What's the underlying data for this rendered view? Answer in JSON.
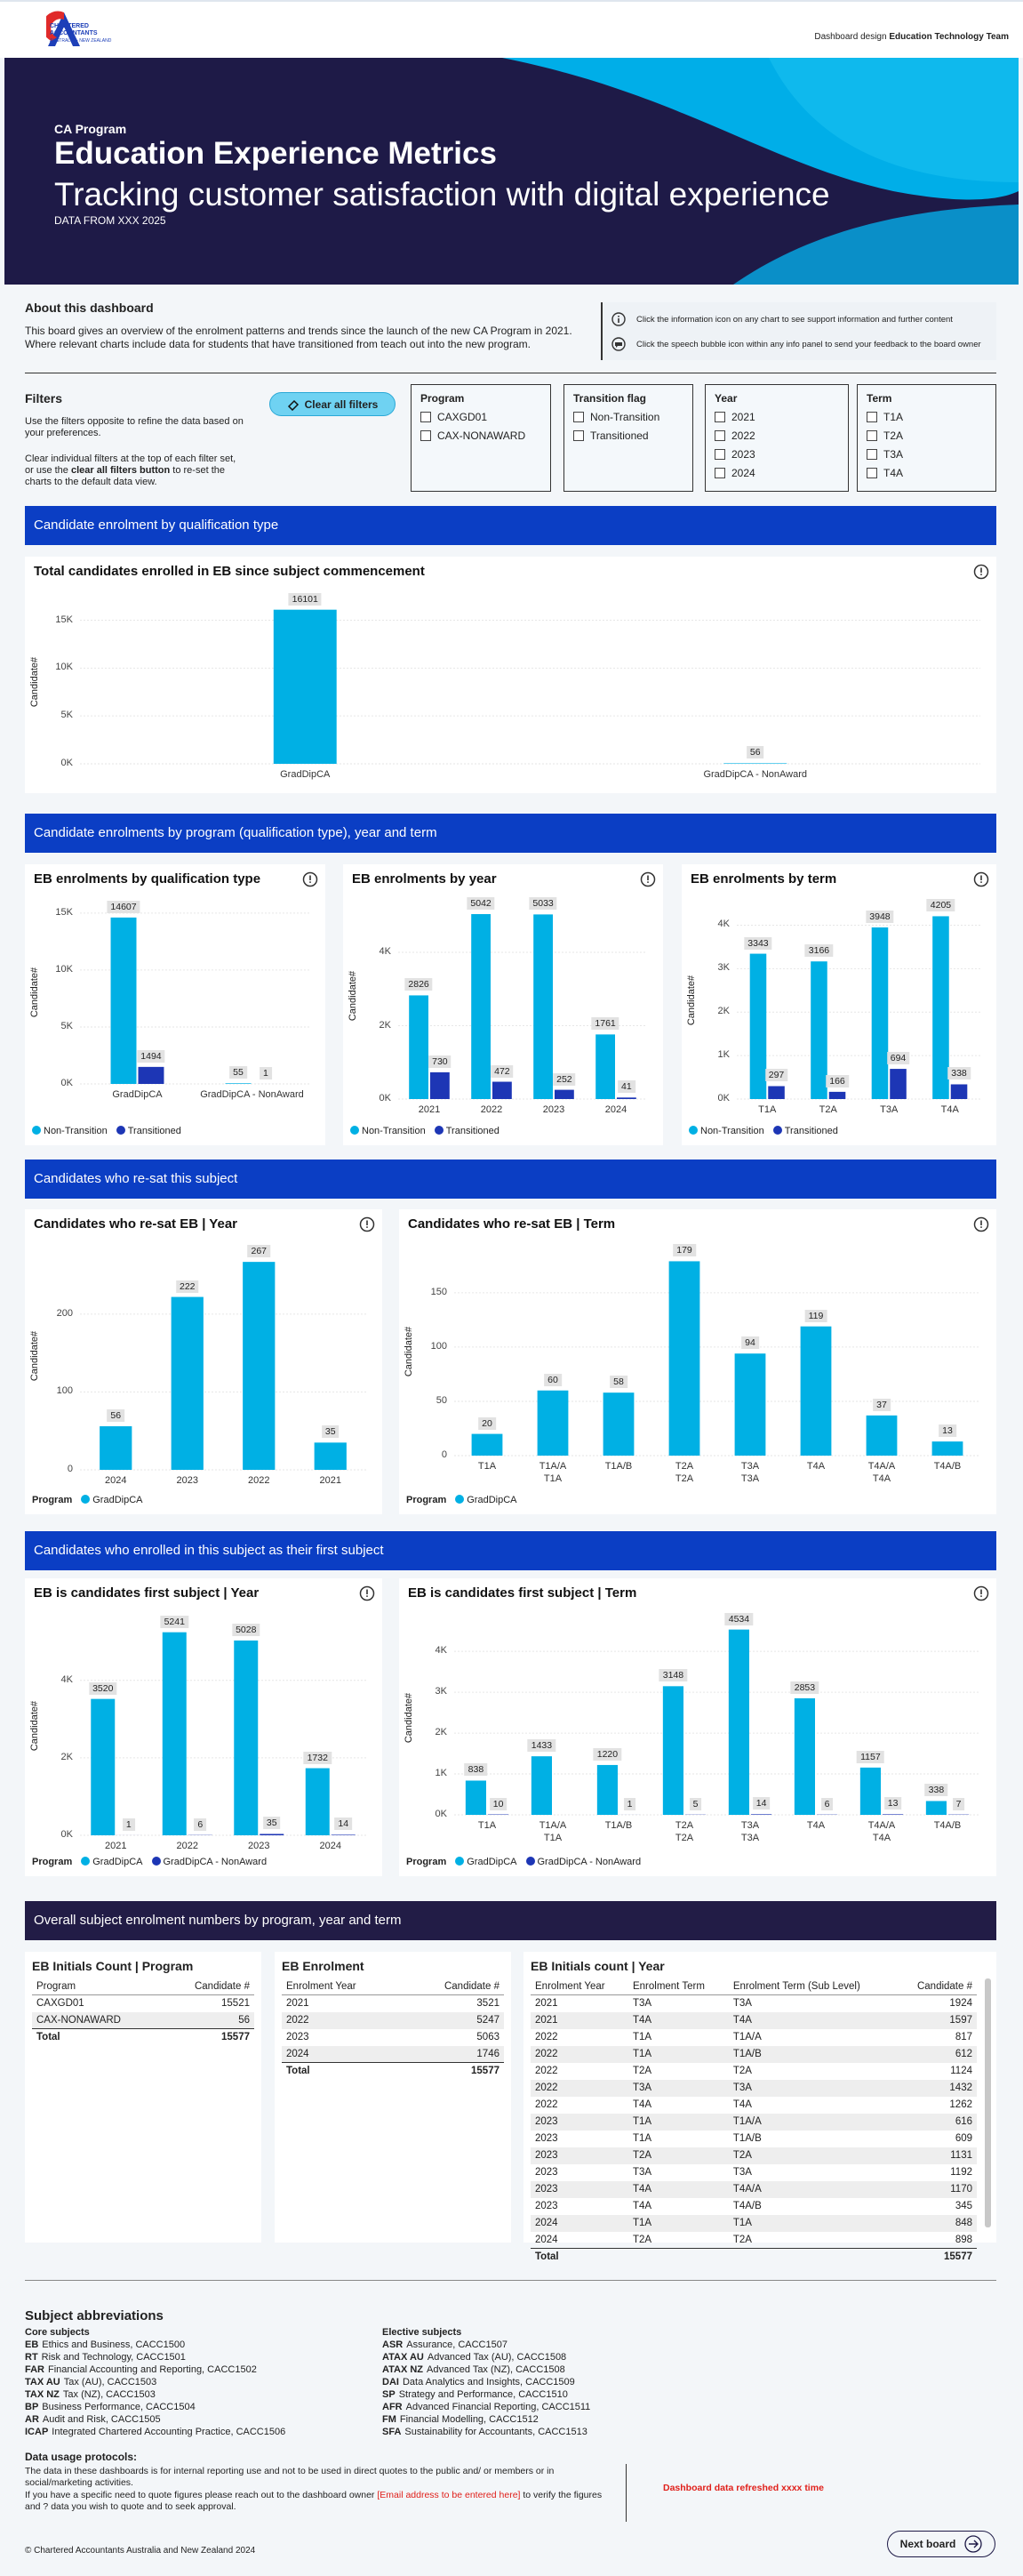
{
  "header": {
    "logo_lines": [
      "CHARTERED",
      "ACCOUNTANTS",
      "AUSTRALIA + NEW ZEALAND"
    ],
    "credit_prefix": "Dashboard design",
    "credit_team": "Education Technology Team"
  },
  "banner": {
    "kicker": "CA Program",
    "title": "Education Experience Metrics",
    "subtitle": "Tracking customer satisfaction with digital experience",
    "note": "DATA FROM XXX 2025"
  },
  "about": {
    "title": "About this dashboard",
    "text": "This board gives an overview of the enrolment patterns and trends since the launch of the new CA Program in 2021. Where relevant charts include data for students that have transitioned from teach out into the new program.",
    "help": [
      "Click the information icon on any chart to see support information and further content",
      "Click the speech bubble icon within any info panel to send your feedback to the board owner"
    ]
  },
  "filters": {
    "title": "Filters",
    "instructions_1": "Use the filters opposite to refine the data based on your preferences.",
    "instructions_2": [
      "Clear individual filters at the top of each filter set, or use the ",
      "clear all filters button",
      " to re-set the charts to the default data view."
    ],
    "clear_button": "Clear all filters",
    "groups": [
      {
        "title": "Program",
        "options": [
          "CAXGD01",
          "CAX-NONAWARD"
        ]
      },
      {
        "title": "Transition flag",
        "options": [
          "Non-Transition",
          "Transitioned"
        ]
      },
      {
        "title": "Year",
        "options": [
          "2021",
          "2022",
          "2023",
          "2024"
        ]
      },
      {
        "title": "Term",
        "options": [
          "T1A",
          "T2A",
          "T3A",
          "T4A"
        ]
      }
    ]
  },
  "sections": [
    "Candidate enrolment by qualification type",
    "Candidate enrolments by program (qualification type), year and term",
    "Candidates who re-sat this subject",
    "Candidates who enrolled in this subject as their first subject",
    "Overall subject enrolment numbers by program, year and term"
  ],
  "chart_data": [
    {
      "type": "bar",
      "title": "Total candidates enrolled in EB since subject commencement",
      "y_label": "Candidate#",
      "categories": [
        "GradDipCA",
        "GradDipCA - NonAward"
      ],
      "values": [
        16101,
        56
      ],
      "color": "#00b0e4",
      "ylim": [
        0,
        17000
      ],
      "yticks": [
        {
          "value": 0,
          "label": "0K"
        },
        {
          "value": 5000,
          "label": "5K"
        },
        {
          "value": 10000,
          "label": "10K"
        },
        {
          "value": 15000,
          "label": "15K"
        }
      ],
      "grid": true
    },
    {
      "type": "bar",
      "title": "EB enrolments by qualification type",
      "y_label": "Candidate#",
      "categories": [
        "GradDipCA",
        "GradDipCA - NonAward"
      ],
      "series": [
        {
          "name": "Non-Transition",
          "color": "#00b0e4",
          "values": [
            14607,
            55
          ]
        },
        {
          "name": "Transitioned",
          "color": "#1d36b5",
          "values": [
            1494,
            1
          ]
        }
      ],
      "ylim": [
        0,
        16000
      ],
      "yticks": [
        {
          "value": 0,
          "label": "0K"
        },
        {
          "value": 5000,
          "label": "5K"
        },
        {
          "value": 10000,
          "label": "10K"
        },
        {
          "value": 15000,
          "label": "15K"
        }
      ],
      "grid": true
    },
    {
      "type": "bar",
      "title": "EB enrolments by year",
      "y_label": "Candidate#",
      "categories": [
        "2021",
        "2022",
        "2023",
        "2024"
      ],
      "series": [
        {
          "name": "Non-Transition",
          "color": "#00b0e4",
          "values": [
            2826,
            5042,
            5033,
            1761
          ]
        },
        {
          "name": "Transitioned",
          "color": "#1d36b5",
          "values": [
            730,
            472,
            252,
            41
          ]
        }
      ],
      "ylim": [
        0,
        5600
      ],
      "yticks": [
        {
          "value": 0,
          "label": "0K"
        },
        {
          "value": 2000,
          "label": "2K"
        },
        {
          "value": 4000,
          "label": "4K"
        }
      ],
      "grid": true
    },
    {
      "type": "bar",
      "title": "EB enrolments by term",
      "y_label": "Candidate#",
      "categories": [
        "T1A",
        "T2A",
        "T3A",
        "T4A"
      ],
      "series": [
        {
          "name": "Non-Transition",
          "color": "#00b0e4",
          "values": [
            3343,
            3166,
            3948,
            4205
          ]
        },
        {
          "name": "Transitioned",
          "color": "#1d36b5",
          "values": [
            297,
            166,
            694,
            338
          ]
        }
      ],
      "ylim": [
        0,
        4500
      ],
      "yticks": [
        {
          "value": 0,
          "label": "0K"
        },
        {
          "value": 1000,
          "label": "1K"
        },
        {
          "value": 2000,
          "label": "2K"
        },
        {
          "value": 3000,
          "label": "3K"
        },
        {
          "value": 4000,
          "label": "4K"
        }
      ],
      "grid": true
    },
    {
      "type": "bar",
      "title": "Candidates who re-sat EB | Year",
      "y_label": "Candidate#",
      "legend_title": "Program",
      "categories": [
        "2024",
        "2023",
        "2022",
        "2021"
      ],
      "series": [
        {
          "name": "GradDipCA",
          "color": "#00b0e4",
          "values": [
            56,
            222,
            267,
            35
          ]
        }
      ],
      "ylim": [
        0,
        290
      ],
      "yticks": [
        0,
        100,
        200
      ],
      "grid": true
    },
    {
      "type": "bar",
      "title": "Candidates who re-sat EB | Term",
      "y_label": "Candidate#",
      "legend_title": "Program",
      "categories": [
        "T1A",
        "T1A/A",
        "T1A/B",
        "T2A",
        "T3A",
        "T4A",
        "T4A/A",
        "T4A/B"
      ],
      "category_sublabels": [
        null,
        "T1A",
        null,
        "T2A",
        "T3A",
        null,
        "T4A",
        null
      ],
      "series": [
        {
          "name": "GradDipCA",
          "color": "#00b0e4",
          "values": [
            20,
            60,
            58,
            179,
            94,
            119,
            37,
            13
          ]
        }
      ],
      "ylim": [
        0,
        190
      ],
      "yticks": [
        0,
        50,
        100,
        150
      ],
      "grid": true
    },
    {
      "type": "bar",
      "title": "EB is candidates first subject | Year",
      "y_label": "Candidate#",
      "legend_title": "Program",
      "categories": [
        "2021",
        "2022",
        "2023",
        "2024"
      ],
      "series": [
        {
          "name": "GradDipCA",
          "color": "#00b0e4",
          "values": [
            3520,
            5241,
            5028,
            1732
          ]
        },
        {
          "name": "GradDipCA - NonAward",
          "color": "#1d36b5",
          "values": [
            1,
            6,
            35,
            14
          ]
        }
      ],
      "ylim": [
        0,
        5600
      ],
      "yticks": [
        {
          "value": 0,
          "label": "0K"
        },
        {
          "value": 2000,
          "label": "2K"
        },
        {
          "value": 4000,
          "label": "4K"
        }
      ],
      "grid": true
    },
    {
      "type": "bar",
      "title": "EB is candidates first subject | Term",
      "y_label": "Candidate#",
      "legend_title": "Program",
      "categories": [
        "T1A",
        "T1A/A",
        "T1A/B",
        "T2A",
        "T3A",
        "T4A",
        "T4A/A",
        "T4A/B"
      ],
      "category_sublabels": [
        null,
        "T1A",
        null,
        "T2A",
        "T3A",
        null,
        "T4A",
        null
      ],
      "series": [
        {
          "name": "GradDipCA",
          "color": "#00b0e4",
          "values": [
            838,
            1433,
            1220,
            3148,
            4534,
            2853,
            1157,
            338
          ]
        },
        {
          "name": "GradDipCA - NonAward",
          "color": "#1d36b5",
          "values": [
            10,
            null,
            1,
            5,
            14,
            6,
            13,
            7
          ]
        }
      ],
      "ylim": [
        0,
        4700
      ],
      "yticks": [
        {
          "value": 0,
          "label": "0K"
        },
        {
          "value": 1000,
          "label": "1K"
        },
        {
          "value": 2000,
          "label": "2K"
        },
        {
          "value": 3000,
          "label": "3K"
        },
        {
          "value": 4000,
          "label": "4K"
        }
      ],
      "grid": true
    }
  ],
  "tables": [
    {
      "title": "EB Initials Count | Program",
      "columns": [
        "Program",
        "Candidate #"
      ],
      "rows": [
        [
          "CAXGD01",
          15521
        ],
        [
          "CAX-NONAWARD",
          56
        ]
      ],
      "total": {
        "label": "Total",
        "value": 15577
      }
    },
    {
      "title": "EB Enrolment",
      "columns": [
        "Enrolment Year",
        "Candidate #"
      ],
      "rows": [
        [
          2021,
          3521
        ],
        [
          2022,
          5247
        ],
        [
          2023,
          5063
        ],
        [
          2024,
          1746
        ]
      ],
      "total": {
        "label": "Total",
        "value": 15577
      }
    },
    {
      "title": "EB Initials count | Year",
      "columns": [
        "Enrolment Year",
        "Enrolment Term",
        "Enrolment Term (Sub Level)",
        "Candidate #"
      ],
      "rows": [
        [
          2021,
          "T3A",
          "T3A",
          1924
        ],
        [
          2021,
          "T4A",
          "T4A",
          1597
        ],
        [
          2022,
          "T1A",
          "T1A/A",
          817
        ],
        [
          2022,
          "T1A",
          "T1A/B",
          612
        ],
        [
          2022,
          "T2A",
          "T2A",
          1124
        ],
        [
          2022,
          "T3A",
          "T3A",
          1432
        ],
        [
          2022,
          "T4A",
          "T4A",
          1262
        ],
        [
          2023,
          "T1A",
          "T1A/A",
          616
        ],
        [
          2023,
          "T1A",
          "T1A/B",
          609
        ],
        [
          2023,
          "T2A",
          "T2A",
          1131
        ],
        [
          2023,
          "T3A",
          "T3A",
          1192
        ],
        [
          2023,
          "T4A",
          "T4A/A",
          1170
        ],
        [
          2023,
          "T4A",
          "T4A/B",
          345
        ],
        [
          2024,
          "T1A",
          "T1A",
          848
        ],
        [
          2024,
          "T2A",
          "T2A",
          898
        ]
      ],
      "total": {
        "label": "Total",
        "value": 15577
      }
    }
  ],
  "abbreviations": {
    "title": "Subject abbreviations",
    "groups": [
      {
        "title": "Core subjects",
        "items": [
          {
            "code": "EB",
            "name": "Ethics and Business, CACC1500"
          },
          {
            "code": "RT",
            "name": "Risk and Technology, CACC1501"
          },
          {
            "code": "FAR",
            "name": "Financial Accounting and Reporting, CACC1502"
          },
          {
            "code": "TAX AU",
            "name": "Tax (AU), CACC1503"
          },
          {
            "code": "TAX NZ",
            "name": "Tax (NZ), CACC1503"
          },
          {
            "code": "BP",
            "name": "Business Performance, CACC1504"
          },
          {
            "code": "AR",
            "name": "Audit and Risk, CACC1505"
          },
          {
            "code": "ICAP",
            "name": "Integrated Chartered Accounting Practice, CACC1506"
          }
        ]
      },
      {
        "title": "Elective subjects",
        "items": [
          {
            "code": "ASR",
            "name": "Assurance, CACC1507"
          },
          {
            "code": "ATAX AU",
            "name": "Advanced Tax (AU), CACC1508"
          },
          {
            "code": "ATAX NZ",
            "name": "Advanced Tax (NZ), CACC1508"
          },
          {
            "code": "DAI",
            "name": "Data Analytics and Insights, CACC1509"
          },
          {
            "code": "SP",
            "name": "Strategy and Performance, CACC1510"
          },
          {
            "code": "AFR",
            "name": "Advanced Financial Reporting, CACC1511"
          },
          {
            "code": "FM",
            "name": "Financial Modelling, CACC1512"
          },
          {
            "code": "SFA",
            "name": "Sustainability for Accountants, CACC1513"
          }
        ]
      }
    ]
  },
  "data_usage": {
    "title": "Data usage protocols:",
    "text": "The data in these dashboards is for internal reporting use and not to be used in direct quotes to the public and/ or members or in social/marketing activities.",
    "contact": [
      "If you have a specific need to quote figures please reach out to the dashboard owner ",
      "[Email address to be entered here]",
      " to verify the figures and ? data you wish to quote and to seek approval."
    ]
  },
  "refresh_note": "Dashboard data refreshed xxxx time",
  "footer": {
    "copyright": "© Chartered Accountants Australia and New Zealand 2024",
    "next_button": "Next board"
  }
}
